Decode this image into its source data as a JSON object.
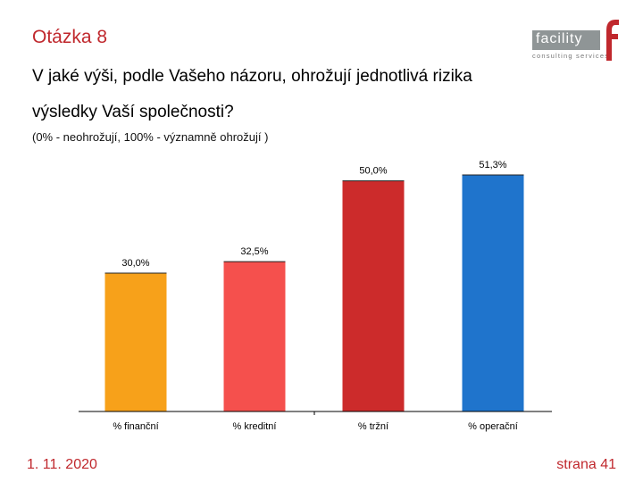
{
  "slide": {
    "title": "Otázka 8",
    "question": "V jaké výši, podle Vašeho názoru, ohrožují jednotlivá rizika výsledky Vaší společnosti?",
    "scale_note": "(0% - neohrožují, 100% - významně ohrožují )",
    "footer_date": "1. 11. 2020",
    "footer_page": "strana 41"
  },
  "logo": {
    "word": "facility",
    "subtitle": "consulting services",
    "accent_color": "#c0282d",
    "box_color": "#8f9596"
  },
  "chart_data": {
    "type": "bar",
    "title": "",
    "xlabel": "",
    "ylabel": "",
    "ylim": [
      0,
      60
    ],
    "grid": false,
    "categories": [
      "% finanční",
      "% kreditní",
      "% tržní",
      "% operační"
    ],
    "values": [
      30.0,
      32.5,
      50.0,
      51.3
    ],
    "value_labels": [
      "30,0%",
      "32,5%",
      "50,0%",
      "51,3%"
    ],
    "colors": [
      "#f7a11a",
      "#f5504d",
      "#cc2b2b",
      "#1f74cc"
    ]
  }
}
